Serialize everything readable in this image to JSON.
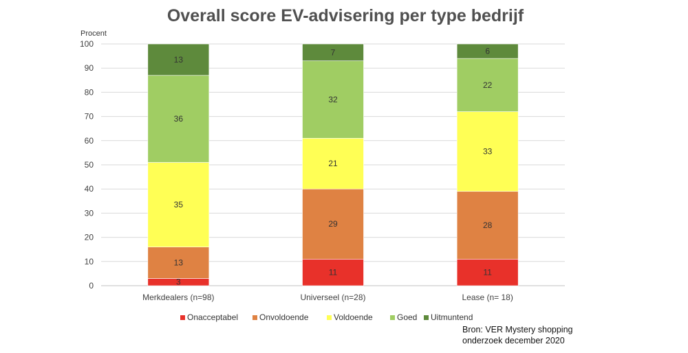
{
  "chart_data": {
    "type": "bar",
    "stacked": true,
    "title": "Overall score EV-advisering per type bedrijf",
    "ylabel": "Procent",
    "ylim": [
      0,
      100
    ],
    "yticks": [
      0,
      10,
      20,
      30,
      40,
      50,
      60,
      70,
      80,
      90,
      100
    ],
    "grid": true,
    "legend_position": "bottom",
    "categories": [
      "Merkdealers (n=98)",
      "Universeel (n=28)",
      "Lease (n= 18)"
    ],
    "series": [
      {
        "name": "Onacceptabel",
        "color": "#e8312a",
        "values": [
          3,
          11,
          11
        ]
      },
      {
        "name": "Onvoldoende",
        "color": "#df8243",
        "values": [
          13,
          29,
          28
        ]
      },
      {
        "name": "Voldoende",
        "color": "#ffff55",
        "values": [
          35,
          21,
          33
        ]
      },
      {
        "name": "Goed",
        "color": "#a0cd63",
        "values": [
          36,
          32,
          22
        ]
      },
      {
        "name": "Uitmuntend",
        "color": "#5e8a3c",
        "values": [
          13,
          7,
          6
        ]
      }
    ]
  },
  "source": [
    "Bron: VER Mystery shopping",
    "onderzoek december 2020"
  ]
}
